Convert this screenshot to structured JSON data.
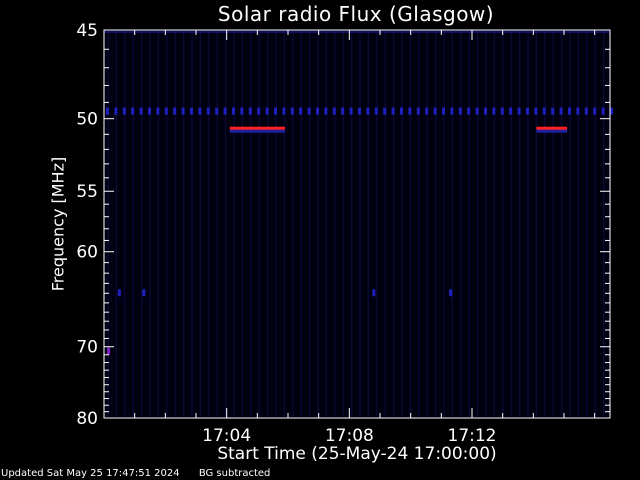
{
  "chart_data": {
    "type": "heatmap",
    "title": "Solar radio Flux (Glasgow)",
    "xlabel": "Start Time (25-May-24 17:00:00)",
    "ylabel": "Frequency [MHz]",
    "x_unit": "minutes after 17:00:00",
    "xlim": [
      0,
      16.5
    ],
    "ylim": [
      45,
      80
    ],
    "y_scale": "reciprocal",
    "x_ticks": [
      {
        "value": 4,
        "label": "17:04"
      },
      {
        "value": 8,
        "label": "17:08"
      },
      {
        "value": 12,
        "label": "17:12"
      }
    ],
    "y_ticks": [
      {
        "value": 45,
        "label": "45"
      },
      {
        "value": 50,
        "label": "50"
      },
      {
        "value": 55,
        "label": "55"
      },
      {
        "value": 60,
        "label": "60"
      },
      {
        "value": 70,
        "label": "70"
      },
      {
        "value": 80,
        "label": "80"
      }
    ],
    "features": [
      {
        "kind": "band",
        "freq": 49.5,
        "t_start": 0,
        "t_end": 16.5,
        "color": "#2020c0"
      },
      {
        "kind": "band",
        "freq": 50.7,
        "t_start": 4.1,
        "t_end": 5.9,
        "color": "#ff2020"
      },
      {
        "kind": "band",
        "freq": 50.7,
        "t_start": 14.1,
        "t_end": 15.1,
        "color": "#ff2020"
      },
      {
        "kind": "spot",
        "freq": 70.6,
        "t": 0.15,
        "color": "#8020c0"
      },
      {
        "kind": "spot",
        "freq": 64,
        "t": 0.5,
        "color": "#2020c0"
      },
      {
        "kind": "spot",
        "freq": 64,
        "t": 1.3,
        "color": "#2020c0"
      },
      {
        "kind": "spot",
        "freq": 64,
        "t": 8.8,
        "color": "#2020c0"
      },
      {
        "kind": "spot",
        "freq": 64,
        "t": 11.3,
        "color": "#2020c0"
      }
    ],
    "background_color": "#000010",
    "grid": false
  },
  "footer": {
    "updated": "Updated Sat May 25 17:47:51 2024",
    "note": "BG subtracted"
  }
}
